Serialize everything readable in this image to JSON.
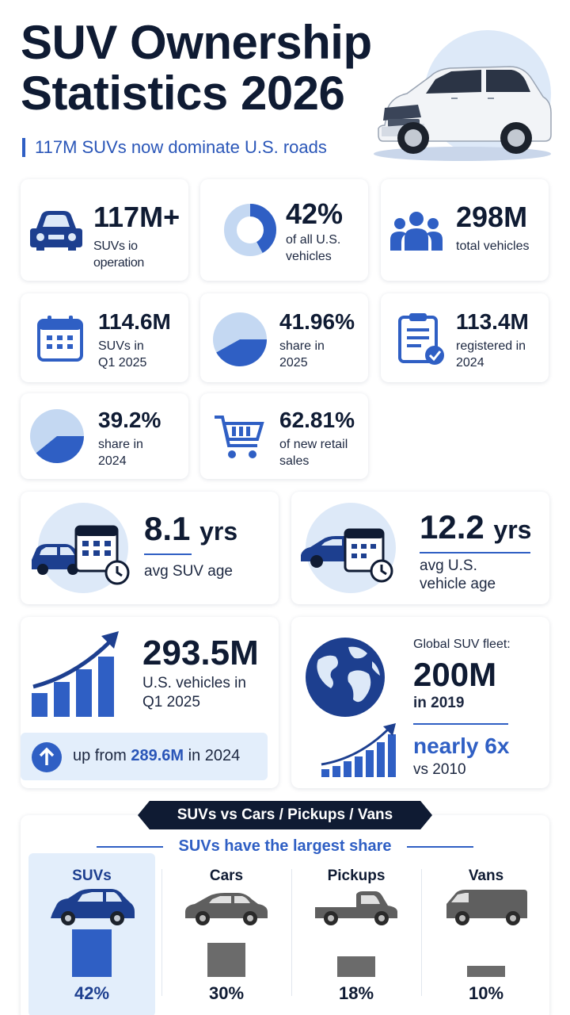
{
  "header": {
    "title": "SUV Ownership Statistics 2026",
    "subtitle": "117M SUVs now dominate U.S. roads"
  },
  "stats_row1": [
    {
      "value": "117M+",
      "label": "SUVs io operation",
      "icon": "car-front-icon"
    },
    {
      "value": "42%",
      "label": "of all U.S. vehicles",
      "icon": "donut-chart-icon",
      "share": 0.42
    },
    {
      "value": "298M",
      "label": "total vehicles",
      "icon": "people-group-icon"
    }
  ],
  "stats_row2": [
    {
      "value": "114.6M",
      "label": "SUVs in Q1 2025",
      "icon": "calendar-icon"
    },
    {
      "value": "41.96%",
      "label": "share in 2025",
      "icon": "pie-chart-icon",
      "share": 0.4196
    },
    {
      "value": "113.4M",
      "label": "registered in 2024",
      "icon": "clipboard-check-icon"
    }
  ],
  "stats_row3": [
    {
      "value": "39.2%",
      "label": "share in 2024",
      "icon": "pie-chart-icon",
      "share": 0.392
    },
    {
      "value": "62.81%",
      "label": "of new retail sales",
      "icon": "shopping-cart-icon"
    }
  ],
  "age": {
    "suv_value": "8.1",
    "suv_unit": "yrs",
    "suv_label": "avg SUV age",
    "us_value": "12.2",
    "us_unit": "yrs",
    "us_label": "avg U.S. vehicle age"
  },
  "vehicles": {
    "value": "293.5M",
    "label": "U.S. vehicles in Q1 2025",
    "up_prefix": "up from",
    "up_value": "289.6M",
    "up_suffix": "in 2024"
  },
  "global": {
    "caption": "Global SUV fleet:",
    "value": "200M",
    "year_label": "in 2019",
    "growth": "nearly 6x",
    "growth_label": "vs 2010"
  },
  "comparison": {
    "banner": "SUVs vs Cars / Pickups / Vans",
    "subtitle": "SUVs have the largest share"
  },
  "chart_data": {
    "type": "bar",
    "title": "SUVs vs Cars / Pickups / Vans",
    "subtitle": "SUVs have the largest share",
    "categories": [
      "SUVs",
      "Cars",
      "Pickups",
      "Vans"
    ],
    "values": [
      42,
      30,
      18,
      10
    ],
    "value_labels": [
      "42%",
      "30%",
      "18%",
      "10%"
    ],
    "colors": [
      "#2f5fc4",
      "#6b6b6b",
      "#6b6b6b",
      "#6b6b6b"
    ],
    "ylim": [
      0,
      42
    ],
    "grid": false
  },
  "colors": {
    "primary_blue": "#2f5fc4",
    "navy": "#0f1b33",
    "light_blue": "#dde9f8",
    "gray": "#6b6b6b"
  }
}
